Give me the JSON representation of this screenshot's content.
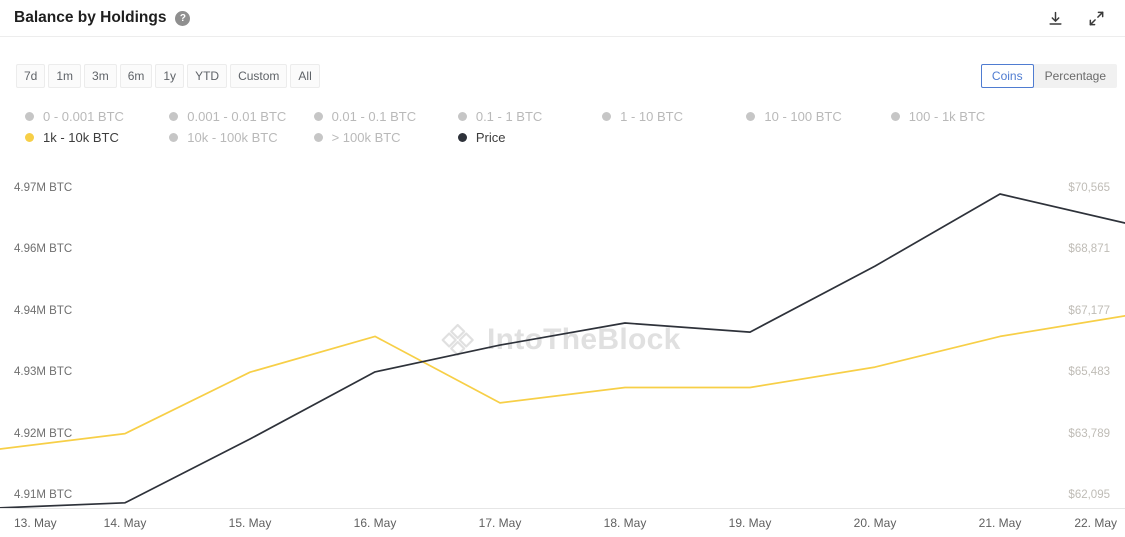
{
  "header": {
    "title": "Balance by Holdings"
  },
  "toolbar": {
    "ranges": [
      "7d",
      "1m",
      "3m",
      "6m",
      "1y",
      "YTD",
      "Custom",
      "All"
    ],
    "unit_toggle": {
      "options": [
        "Coins",
        "Percentage"
      ],
      "selected": "Coins"
    }
  },
  "legend": {
    "items": [
      {
        "label": "0 - 0.001 BTC",
        "active": false
      },
      {
        "label": "0.001 - 0.01 BTC",
        "active": false
      },
      {
        "label": "0.01 - 0.1 BTC",
        "active": false
      },
      {
        "label": "0.1 - 1 BTC",
        "active": false
      },
      {
        "label": "1 - 10 BTC",
        "active": false
      },
      {
        "label": "10 - 100 BTC",
        "active": false
      },
      {
        "label": "100 - 1k BTC",
        "active": false
      },
      {
        "label": "1k - 10k BTC",
        "active": true,
        "color": "#f7cf47"
      },
      {
        "label": "10k - 100k BTC",
        "active": false
      },
      {
        "label": "> 100k BTC",
        "active": false
      },
      {
        "label": "Price",
        "active": true,
        "color": "#2e323a"
      }
    ]
  },
  "chart_data": {
    "type": "line",
    "x": [
      "13. May",
      "14. May",
      "15. May",
      "16. May",
      "17. May",
      "18. May",
      "19. May",
      "20. May",
      "21. May",
      "22. May"
    ],
    "series": [
      {
        "name": "1k - 10k BTC",
        "axis": "left",
        "color": "#f7cf47",
        "unit": "M BTC",
        "values": [
          4.919,
          4.922,
          4.934,
          4.941,
          4.928,
          4.931,
          4.931,
          4.935,
          4.941,
          4.945
        ]
      },
      {
        "name": "Price",
        "axis": "right",
        "color": "#2e323a",
        "unit": "USD",
        "values": [
          61740,
          61880,
          63640,
          65490,
          66230,
          66840,
          66590,
          68410,
          70400,
          69600
        ]
      }
    ],
    "left_axis": {
      "labels": [
        "4.97M BTC",
        "4.96M BTC",
        "4.94M BTC",
        "4.93M BTC",
        "4.92M BTC",
        "4.91M BTC"
      ],
      "min": 4.91,
      "max": 4.97
    },
    "right_axis": {
      "labels": [
        "$70,565",
        "$68,871",
        "$67,177",
        "$65,483",
        "$63,789",
        "$62,095"
      ],
      "min": 62095,
      "max": 70565
    },
    "grid": false,
    "legend_position": "top",
    "watermark": "IntoTheBlock"
  }
}
